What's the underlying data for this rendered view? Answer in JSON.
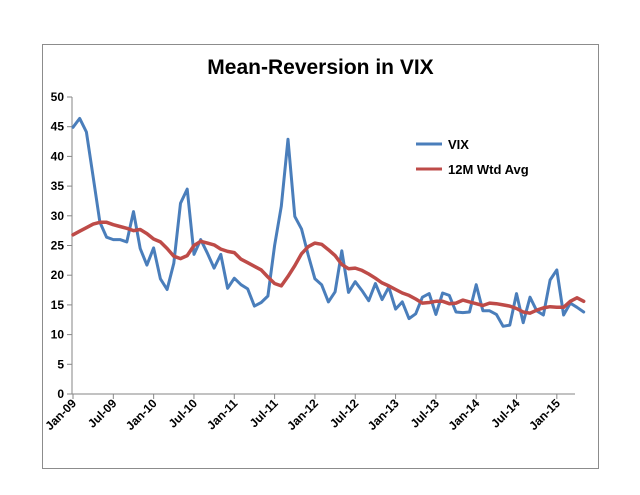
{
  "chart_data": {
    "type": "line",
    "title": "Mean-Reversion in VIX",
    "xlabel": "",
    "ylabel": "",
    "ylim": [
      0,
      50
    ],
    "yticks": [
      "0",
      "5",
      "10",
      "15",
      "20",
      "25",
      "30",
      "35",
      "40",
      "45",
      "50"
    ],
    "xticks": [
      "Jan-09",
      "Jul-09",
      "Jan-10",
      "Jul-10",
      "Jan-11",
      "Jul-11",
      "Jan-12",
      "Jul-12",
      "Jan-13",
      "Jul-13",
      "Jan-14",
      "Jul-14",
      "Jan-15"
    ],
    "grid": false,
    "legend": "top-right",
    "x_start": "Jan-09",
    "series": [
      {
        "name": "VIX",
        "color": "#4a7ebb",
        "values": [
          44.9,
          46.4,
          44.1,
          36.5,
          28.9,
          26.4,
          26.0,
          26.0,
          25.6,
          30.7,
          24.5,
          21.7,
          24.6,
          19.4,
          17.6,
          22.0,
          32.1,
          34.5,
          23.5,
          26.0,
          23.7,
          21.2,
          23.5,
          17.8,
          19.5,
          18.4,
          17.7,
          14.8,
          15.4,
          16.5,
          25.0,
          31.6,
          42.9,
          29.9,
          27.8,
          23.4,
          19.4,
          18.4,
          15.5,
          17.2,
          24.1,
          17.1,
          18.9,
          17.4,
          15.7,
          18.6,
          15.9,
          18.0,
          14.3,
          15.5,
          12.7,
          13.5,
          16.3,
          16.9,
          13.4,
          17.0,
          16.6,
          13.8,
          13.7,
          13.8,
          18.4,
          14.0,
          14.0,
          13.4,
          11.4,
          11.6,
          16.9,
          12.0,
          16.3,
          14.0,
          13.3,
          19.2,
          20.9,
          13.3,
          15.3,
          14.6,
          13.8
        ]
      },
      {
        "name": "12M Wtd Avg",
        "color": "#be4b48",
        "values": [
          26.8,
          27.4,
          28.0,
          28.6,
          28.9,
          28.9,
          28.5,
          28.2,
          27.9,
          27.5,
          27.7,
          27.0,
          26.1,
          25.6,
          24.5,
          23.2,
          22.8,
          23.3,
          25.0,
          25.7,
          25.4,
          25.1,
          24.4,
          24.0,
          23.8,
          22.7,
          22.1,
          21.5,
          20.9,
          19.7,
          18.6,
          18.2,
          19.8,
          21.6,
          23.6,
          24.8,
          25.4,
          25.2,
          24.3,
          23.3,
          21.8,
          21.1,
          21.2,
          20.8,
          20.2,
          19.5,
          18.7,
          18.2,
          17.6,
          17.0,
          16.6,
          16.0,
          15.3,
          15.4,
          15.6,
          15.6,
          15.2,
          15.3,
          15.8,
          15.5,
          15.2,
          14.9,
          15.3,
          15.2,
          15.0,
          14.8,
          14.4,
          13.8,
          13.6,
          14.1,
          14.5,
          14.7,
          14.6,
          14.6,
          15.6,
          16.2,
          15.6
        ]
      }
    ]
  }
}
